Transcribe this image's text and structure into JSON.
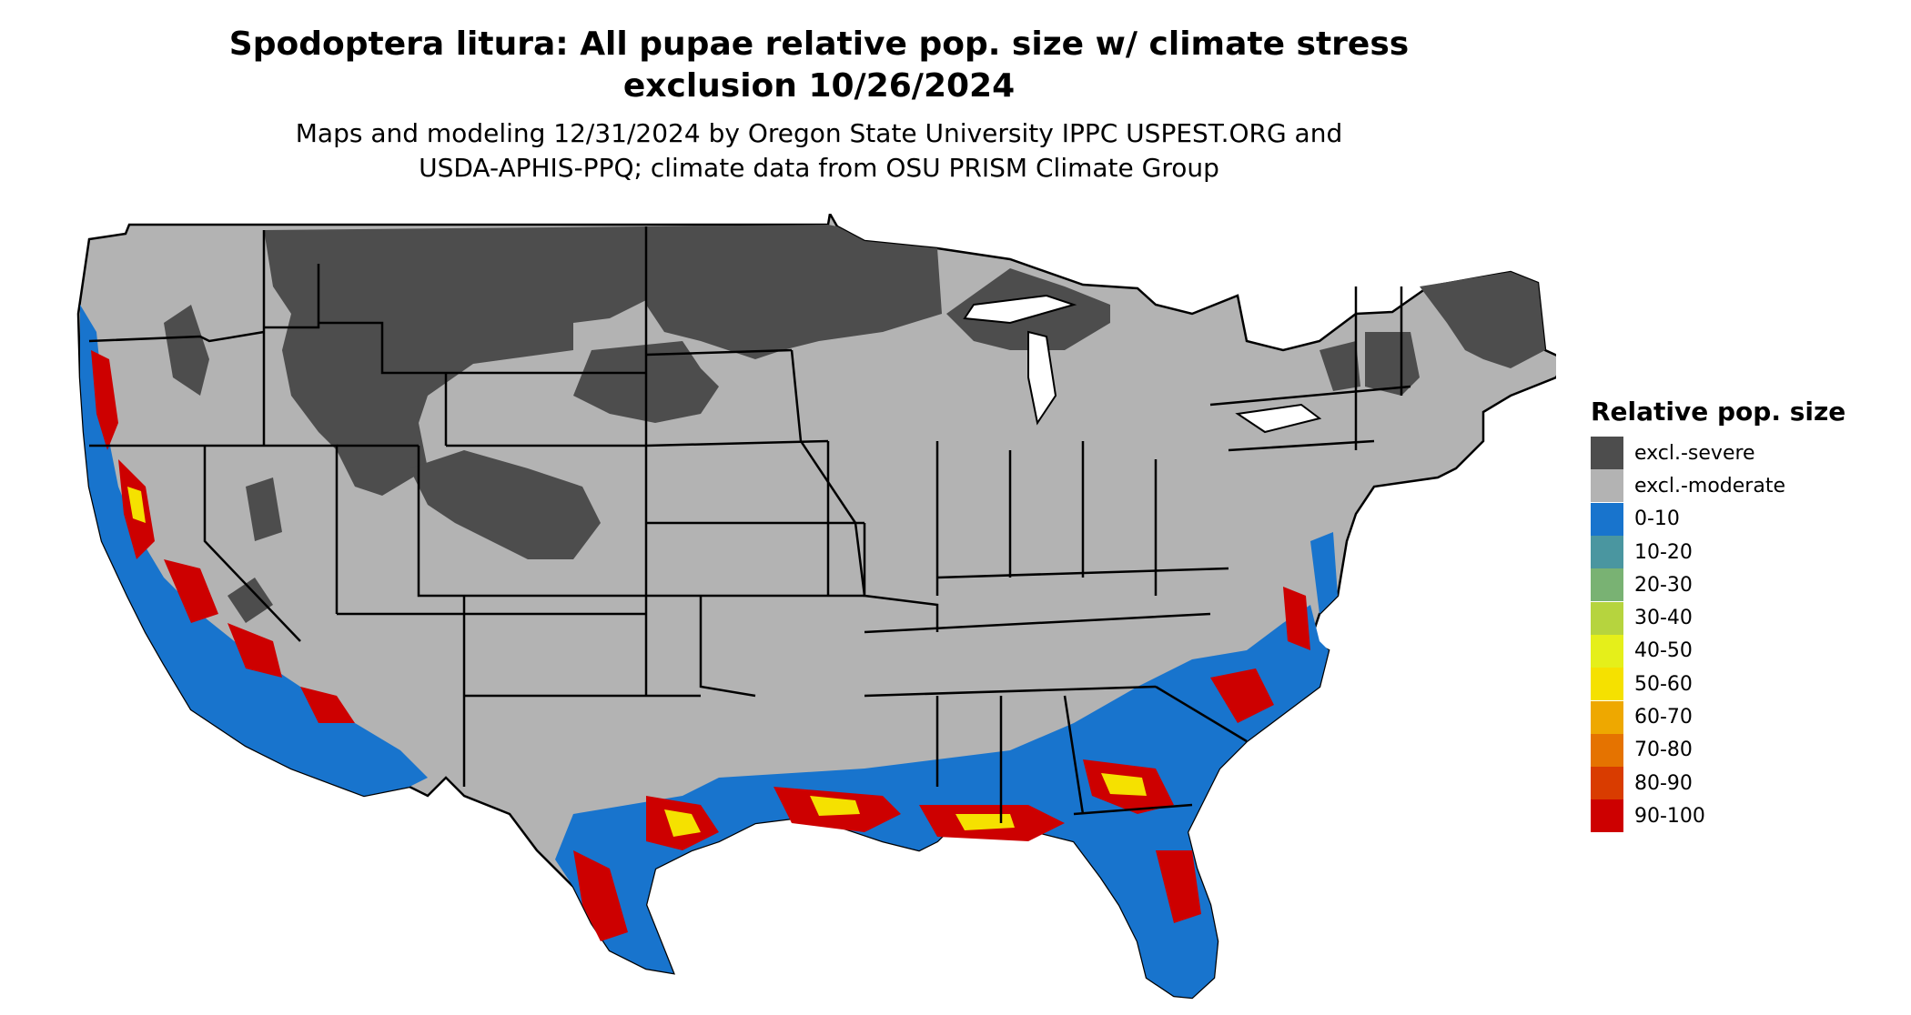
{
  "title_line1": "Spodoptera litura: All pupae relative pop. size w/ climate stress",
  "title_line2": "exclusion 10/26/2024",
  "subtitle_line1": "Maps and modeling 12/31/2024 by Oregon State University IPPC USPEST.ORG and",
  "subtitle_line2": "USDA-APHIS-PPQ; climate data from OSU PRISM Climate Group",
  "legend": {
    "title": "Relative pop. size",
    "items": [
      {
        "label": "excl.-severe",
        "color": "#4d4d4d"
      },
      {
        "label": "excl.-moderate",
        "color": "#b3b3b3"
      },
      {
        "label": "0-10",
        "color": "#1874cd"
      },
      {
        "label": "10-20",
        "color": "#4a96a0"
      },
      {
        "label": "20-30",
        "color": "#79b273"
      },
      {
        "label": "30-40",
        "color": "#b6d43e"
      },
      {
        "label": "40-50",
        "color": "#e5ef1a"
      },
      {
        "label": "50-60",
        "color": "#f5e100"
      },
      {
        "label": "60-70",
        "color": "#eea800"
      },
      {
        "label": "70-80",
        "color": "#e57300"
      },
      {
        "label": "80-90",
        "color": "#d93c00"
      },
      {
        "label": "90-100",
        "color": "#cd0000"
      }
    ]
  },
  "map_colors": {
    "severe": "#4d4d4d",
    "moderate": "#b3b3b3",
    "low": "#1874cd",
    "high": "#cd0000",
    "mid": "#f5e100",
    "border": "#000000"
  }
}
